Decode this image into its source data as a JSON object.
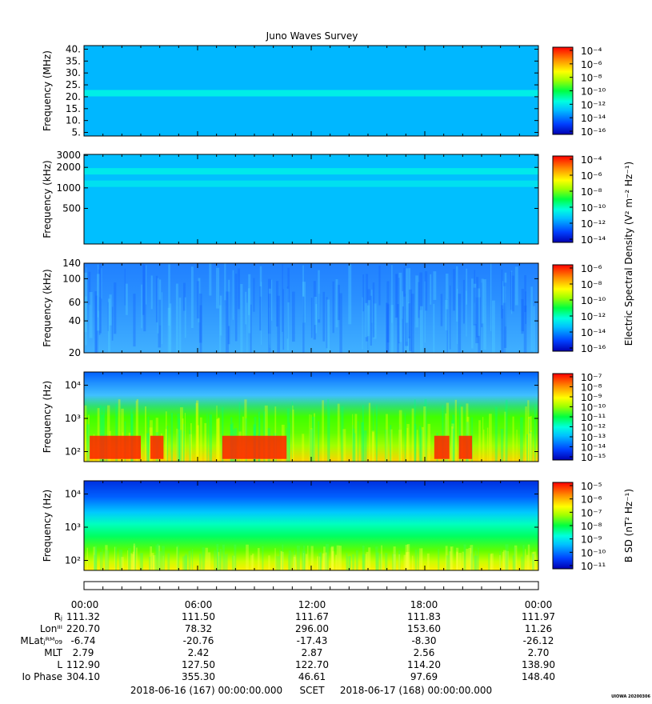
{
  "title": "Juno Waves Survey",
  "footer": {
    "start": "2018-06-16 (167) 00:00:00.000",
    "mid": "SCET",
    "end": "2018-06-17 (168) 00:00:00.000",
    "stamp": "UIOWA 20200306"
  },
  "colorbar_labels": {
    "esd": "Electric Spectral Density (V² m⁻² Hz⁻¹)",
    "bsd": "B SD (nT² Hz⁻¹)"
  },
  "ephemeris": {
    "times": [
      "00:00",
      "06:00",
      "12:00",
      "18:00",
      "00:00"
    ],
    "rows": [
      {
        "label": "Rⱼ",
        "values": [
          "111.32",
          "111.50",
          "111.67",
          "111.83",
          "111.97"
        ]
      },
      {
        "label": "Lonᴵᴵᴵ",
        "values": [
          "220.70",
          "78.32",
          "296.00",
          "153.60",
          "11.26"
        ]
      },
      {
        "label": "MLatⱼᴿᴹ₀₉",
        "values": [
          "-6.74",
          "-20.76",
          "-17.43",
          "-8.30",
          "-26.12"
        ]
      },
      {
        "label": "MLT",
        "values": [
          "2.79",
          "2.42",
          "2.87",
          "2.56",
          "2.70"
        ]
      },
      {
        "label": "L",
        "values": [
          "112.90",
          "127.50",
          "122.70",
          "114.20",
          "138.90"
        ]
      },
      {
        "label": "Io Phase",
        "values": [
          "304.10",
          "355.30",
          "46.61",
          "97.69",
          "148.40"
        ]
      }
    ]
  },
  "chart_data": [
    {
      "type": "heatmap",
      "panel": 1,
      "ylabel": "Frequency (MHz)",
      "yticks": [
        "5.",
        "10.",
        "15.",
        "20.",
        "25.",
        "30.",
        "35.",
        "40."
      ],
      "ytick_values": [
        5,
        10,
        15,
        20,
        25,
        30,
        35,
        40
      ],
      "ylim": [
        3.5,
        41.5
      ],
      "yscale": "linear",
      "colorbar": {
        "ticks": [
          "10⁻¹⁶",
          "10⁻¹⁴",
          "10⁻¹²",
          "10⁻¹⁰",
          "10⁻⁸",
          "10⁻⁶",
          "10⁻⁴"
        ],
        "range": [
          -17,
          -4
        ]
      },
      "background_level": -13.5,
      "bands": [
        {
          "freq": 21.5,
          "level": -12.2
        }
      ]
    },
    {
      "type": "heatmap",
      "panel": 2,
      "ylabel": "Frequency (kHz)",
      "yticks": [
        "500",
        "1000",
        "2000",
        "3000"
      ],
      "ytick_values": [
        500,
        1000,
        2000,
        3000
      ],
      "ylim": [
        150,
        3100
      ],
      "yscale": "log",
      "colorbar": {
        "ticks": [
          "10⁻¹⁴",
          "10⁻¹²",
          "10⁻¹⁰",
          "10⁻⁸",
          "10⁻⁶",
          "10⁻⁴"
        ],
        "range": [
          -15,
          -3.5
        ]
      },
      "background_level": -11.8,
      "bands": [
        {
          "freq": 1750,
          "level": -10.9
        },
        {
          "freq": 1150,
          "level": -11.1
        }
      ]
    },
    {
      "type": "heatmap",
      "panel": 3,
      "ylabel": "Frequency (kHz)",
      "yticks": [
        "20",
        "40",
        "60",
        "100",
        "140"
      ],
      "ytick_values": [
        20,
        40,
        60,
        100,
        140
      ],
      "ylim": [
        20,
        140
      ],
      "yscale": "log",
      "colorbar": {
        "ticks": [
          "10⁻¹⁶",
          "10⁻¹⁴",
          "10⁻¹²",
          "10⁻¹⁰",
          "10⁻⁸",
          "10⁻⁶"
        ],
        "range": [
          -16.5,
          -5.5
        ]
      },
      "background_level": -14.2
    },
    {
      "type": "heatmap",
      "panel": 4,
      "ylabel": "Frequency (Hz)",
      "yticks": [
        "10²",
        "10³",
        "10⁴"
      ],
      "ytick_values": [
        100,
        1000,
        10000
      ],
      "ylim": [
        50,
        25000
      ],
      "yscale": "log",
      "colorbar": {
        "ticks": [
          "10⁻¹⁵",
          "10⁻¹⁴",
          "10⁻¹³",
          "10⁻¹²",
          "10⁻¹¹",
          "10⁻¹⁰",
          "10⁻⁹",
          "10⁻⁸",
          "10⁻⁷"
        ],
        "range": [
          -15,
          -7
        ]
      },
      "background_level": -10.5,
      "enhancement_intervals_hours": [
        [
          0.3,
          3.0
        ],
        [
          3.5,
          4.2
        ],
        [
          7.3,
          10.7
        ],
        [
          18.5,
          19.3
        ],
        [
          19.8,
          20.5
        ]
      ]
    },
    {
      "type": "heatmap",
      "panel": 5,
      "ylabel": "Frequency (Hz)",
      "yticks": [
        "10²",
        "10³",
        "10⁴"
      ],
      "ytick_values": [
        100,
        1000,
        10000
      ],
      "ylim": [
        50,
        25000
      ],
      "yscale": "log",
      "colorbar": {
        "ticks": [
          "10⁻¹¹",
          "10⁻¹⁰",
          "10⁻⁹",
          "10⁻⁸",
          "10⁻⁷",
          "10⁻⁶",
          "10⁻⁵"
        ],
        "range": [
          -11,
          -4.5
        ]
      },
      "background_level": -9.0
    }
  ],
  "time_axis": {
    "start_hours": 0,
    "end_hours": 24,
    "major_tick_hours": [
      0,
      6,
      12,
      18,
      24
    ]
  }
}
